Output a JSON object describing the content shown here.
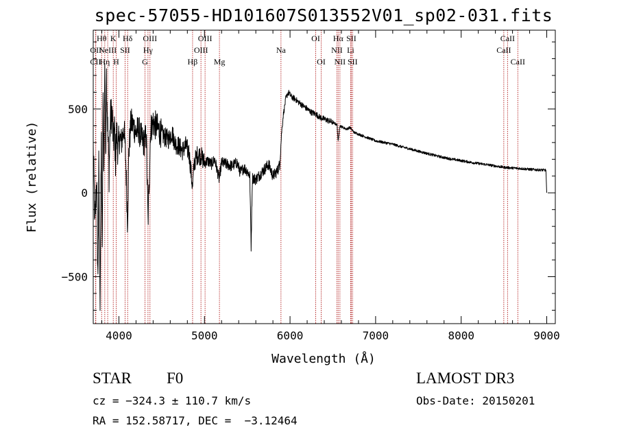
{
  "chart_data": {
    "type": "line",
    "title": "spec-57055-HD101607S013552V01_sp02-031.fits",
    "xlabel": "Wavelength (Å)",
    "ylabel": "Flux (relative)",
    "xlim": [
      3700,
      9100
    ],
    "ylim": [
      -780,
      970
    ],
    "xticks": [
      4000,
      5000,
      6000,
      7000,
      8000,
      9000
    ],
    "yticks": [
      -500,
      0,
      500
    ],
    "grid": false,
    "series": [
      {
        "name": "flux",
        "anchors": [
          [
            3700,
            280
          ],
          [
            3720,
            -200
          ],
          [
            3740,
            100
          ],
          [
            3755,
            -540
          ],
          [
            3765,
            150
          ],
          [
            3780,
            -620
          ],
          [
            3795,
            300
          ],
          [
            3805,
            -400
          ],
          [
            3815,
            550
          ],
          [
            3825,
            120
          ],
          [
            3835,
            800
          ],
          [
            3845,
            250
          ],
          [
            3855,
            700
          ],
          [
            3870,
            380
          ],
          [
            3885,
            120
          ],
          [
            3900,
            440
          ],
          [
            3920,
            480
          ],
          [
            3935,
            300
          ],
          [
            3950,
            380
          ],
          [
            3960,
            200
          ],
          [
            3975,
            360
          ],
          [
            3990,
            250
          ],
          [
            4010,
            330
          ],
          [
            4030,
            300
          ],
          [
            4060,
            390
          ],
          [
            4080,
            200
          ],
          [
            4101,
            -180
          ],
          [
            4115,
            230
          ],
          [
            4140,
            420
          ],
          [
            4170,
            400
          ],
          [
            4200,
            360
          ],
          [
            4230,
            380
          ],
          [
            4260,
            330
          ],
          [
            4290,
            300
          ],
          [
            4320,
            340
          ],
          [
            4340,
            -180
          ],
          [
            4355,
            90
          ],
          [
            4370,
            380
          ],
          [
            4400,
            420
          ],
          [
            4430,
            400
          ],
          [
            4460,
            380
          ],
          [
            4500,
            350
          ],
          [
            4540,
            330
          ],
          [
            4580,
            320
          ],
          [
            4620,
            360
          ],
          [
            4660,
            290
          ],
          [
            4700,
            280
          ],
          [
            4740,
            250
          ],
          [
            4780,
            280
          ],
          [
            4820,
            240
          ],
          [
            4861,
            30
          ],
          [
            4880,
            180
          ],
          [
            4920,
            230
          ],
          [
            4960,
            220
          ],
          [
            5000,
            180
          ],
          [
            5040,
            190
          ],
          [
            5080,
            170
          ],
          [
            5120,
            200
          ],
          [
            5172,
            80
          ],
          [
            5200,
            180
          ],
          [
            5260,
            170
          ],
          [
            5320,
            160
          ],
          [
            5380,
            180
          ],
          [
            5420,
            120
          ],
          [
            5460,
            150
          ],
          [
            5500,
            130
          ],
          [
            5530,
            100
          ],
          [
            5545,
            -320
          ],
          [
            5560,
            90
          ],
          [
            5600,
            80
          ],
          [
            5650,
            110
          ],
          [
            5700,
            140
          ],
          [
            5750,
            170
          ],
          [
            5800,
            100
          ],
          [
            5850,
            130
          ],
          [
            5880,
            170
          ],
          [
            5900,
            350
          ],
          [
            5920,
            460
          ],
          [
            5950,
            560
          ],
          [
            5980,
            600
          ],
          [
            6020,
            570
          ],
          [
            6060,
            560
          ],
          [
            6100,
            540
          ],
          [
            6150,
            520
          ],
          [
            6200,
            500
          ],
          [
            6250,
            480
          ],
          [
            6300,
            470
          ],
          [
            6350,
            450
          ],
          [
            6400,
            440
          ],
          [
            6450,
            430
          ],
          [
            6500,
            420
          ],
          [
            6550,
            405
          ],
          [
            6563,
            300
          ],
          [
            6580,
            400
          ],
          [
            6620,
            390
          ],
          [
            6660,
            380
          ],
          [
            6700,
            390
          ],
          [
            6750,
            360
          ],
          [
            6800,
            350
          ],
          [
            6900,
            330
          ],
          [
            7000,
            310
          ],
          [
            7100,
            300
          ],
          [
            7200,
            290
          ],
          [
            7300,
            275
          ],
          [
            7400,
            262
          ],
          [
            7500,
            248
          ],
          [
            7600,
            235
          ],
          [
            7700,
            222
          ],
          [
            7800,
            210
          ],
          [
            7900,
            200
          ],
          [
            8000,
            192
          ],
          [
            8100,
            183
          ],
          [
            8200,
            175
          ],
          [
            8300,
            168
          ],
          [
            8400,
            160
          ],
          [
            8500,
            152
          ],
          [
            8600,
            148
          ],
          [
            8700,
            145
          ],
          [
            8800,
            140
          ],
          [
            8900,
            137
          ],
          [
            8990,
            135
          ],
          [
            9000,
            0
          ]
        ]
      }
    ],
    "line_markers": [
      {
        "name": "CII",
        "x": 3727,
        "row": 2
      },
      {
        "name": "OII",
        "x": 3730,
        "row": 1
      },
      {
        "name": "Hθ",
        "x": 3798,
        "row": 0
      },
      {
        "name": "Hη",
        "x": 3835,
        "row": 2
      },
      {
        "name": "NeIII",
        "x": 3869,
        "row": 1
      },
      {
        "name": "K",
        "x": 3934,
        "row": 0
      },
      {
        "name": "H",
        "x": 3968,
        "row": 2
      },
      {
        "name": "SII",
        "x": 4072,
        "row": 1
      },
      {
        "name": "Hδ",
        "x": 4102,
        "row": 0
      },
      {
        "name": "G",
        "x": 4305,
        "row": 2
      },
      {
        "name": "Hγ",
        "x": 4340,
        "row": 1
      },
      {
        "name": "OIII",
        "x": 4363,
        "row": 0
      },
      {
        "name": "Hβ",
        "x": 4861,
        "row": 2
      },
      {
        "name": "OIII",
        "x": 4959,
        "row": 1
      },
      {
        "name": "OIII",
        "x": 5007,
        "row": 0
      },
      {
        "name": "Mg",
        "x": 5175,
        "row": 2
      },
      {
        "name": "Na",
        "x": 5894,
        "row": 1
      },
      {
        "name": "OI",
        "x": 6300,
        "row": 0
      },
      {
        "name": "OI",
        "x": 6364,
        "row": 2
      },
      {
        "name": "NII",
        "x": 6548,
        "row": 1
      },
      {
        "name": "Hα",
        "x": 6563,
        "row": 0
      },
      {
        "name": "NII",
        "x": 6583,
        "row": 2
      },
      {
        "name": "Li",
        "x": 6708,
        "row": 1
      },
      {
        "name": "SII",
        "x": 6716,
        "row": 0
      },
      {
        "name": "SII",
        "x": 6731,
        "row": 2
      },
      {
        "name": "CaII",
        "x": 8498,
        "row": 1
      },
      {
        "name": "CaII",
        "x": 8542,
        "row": 0
      },
      {
        "name": "CaII",
        "x": 8662,
        "row": 2
      }
    ]
  },
  "info": {
    "class_label": "STAR",
    "subclass_label": "F0",
    "survey_label": "LAMOST DR3",
    "redshift_text": "cz = −324.3 ± 110.7 km/s",
    "obsdate_text": "Obs-Date: 20150201",
    "coords_text": "RA = 152.58717, DEC =  −3.12464"
  }
}
